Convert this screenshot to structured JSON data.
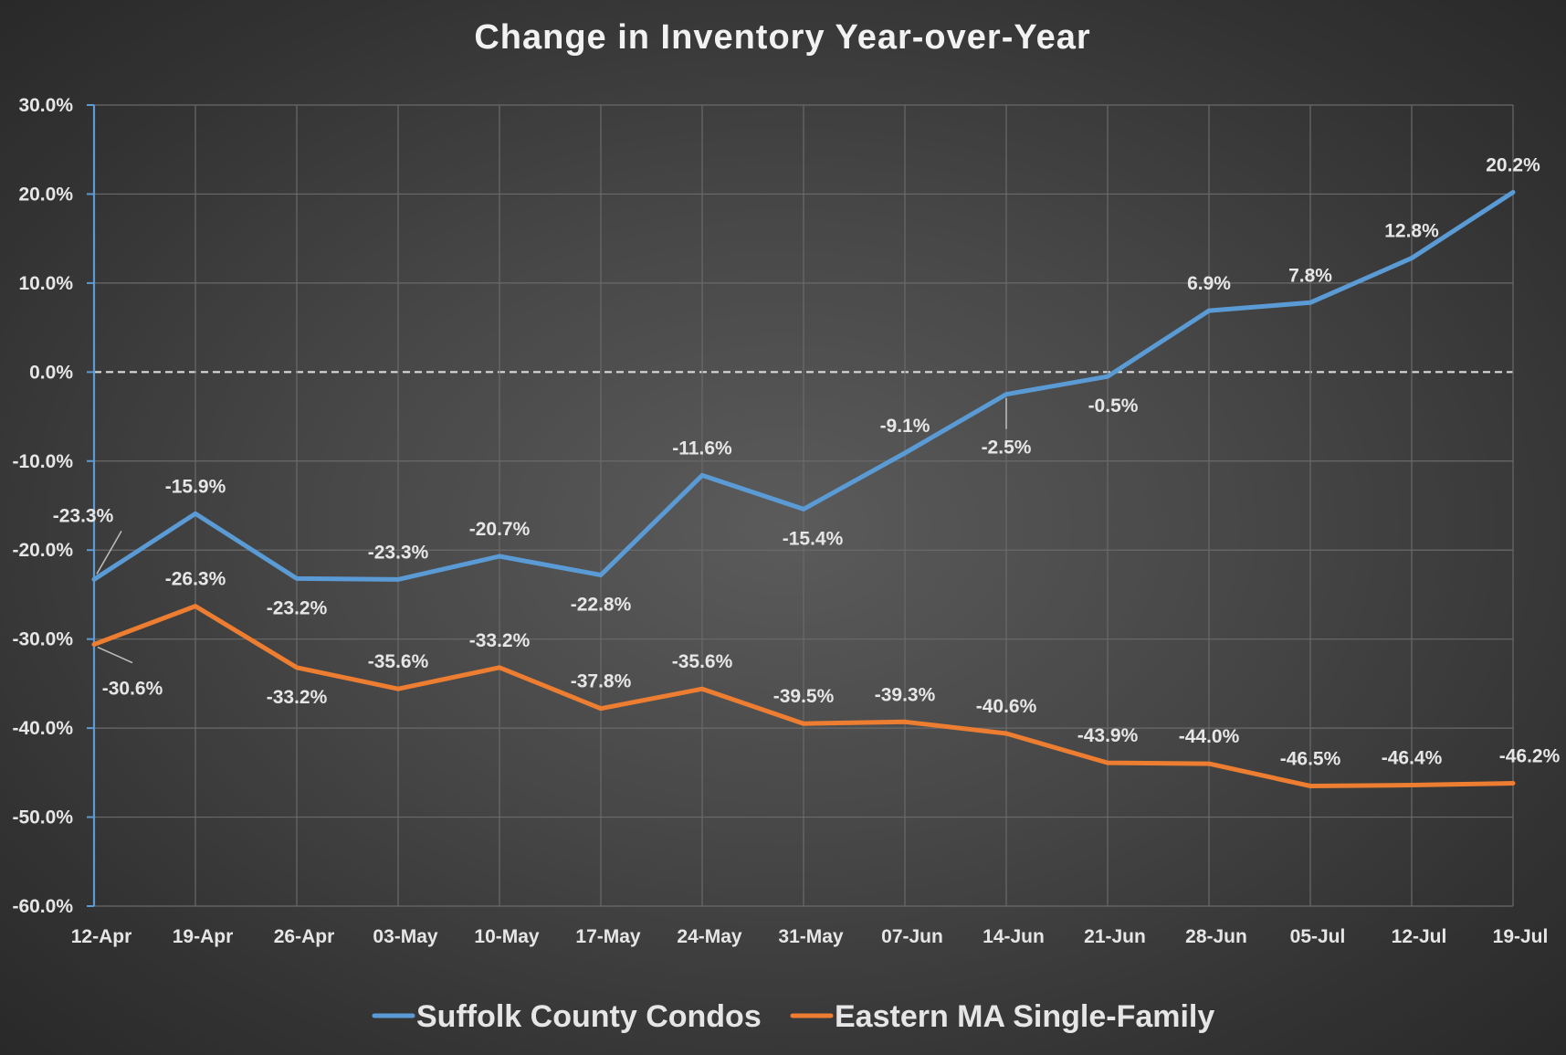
{
  "chart_data": {
    "type": "line",
    "title": "Change in Inventory Year-over-Year",
    "xlabel": "",
    "ylabel": "",
    "ylim": [
      -60,
      30
    ],
    "ytick_step": 10,
    "y_tick_labels": [
      "30.0%",
      "20.0%",
      "10.0%",
      "0.0%",
      "-10.0%",
      "-20.0%",
      "-30.0%",
      "-40.0%",
      "-50.0%",
      "-60.0%"
    ],
    "categories": [
      "12-Apr",
      "19-Apr",
      "26-Apr",
      "03-May",
      "10-May",
      "17-May",
      "24-May",
      "31-May",
      "07-Jun",
      "14-Jun",
      "21-Jun",
      "28-Jun",
      "05-Jul",
      "12-Jul",
      "19-Jul"
    ],
    "grid": true,
    "zero_line": "dashed",
    "legend_position": "bottom",
    "series": [
      {
        "name": "Suffolk County Condos",
        "color": "#5b9bd5",
        "values": [
          -23.3,
          -15.9,
          -23.2,
          -23.3,
          -20.7,
          -22.8,
          -11.6,
          -15.4,
          -9.1,
          -2.5,
          -0.5,
          6.9,
          7.8,
          12.8,
          20.2
        ],
        "labels": [
          "-23.3%",
          "-15.9%",
          "-23.2%",
          "-23.3%",
          "-20.7%",
          "-22.8%",
          "-11.6%",
          "-15.4%",
          "-9.1%",
          "-2.5%",
          "-0.5%",
          "6.9%",
          "7.8%",
          "12.8%",
          "20.2%"
        ]
      },
      {
        "name": "Eastern MA Single-Family",
        "color": "#ed7d31",
        "values": [
          -30.6,
          -26.3,
          -33.2,
          -35.6,
          -33.2,
          -37.8,
          -35.6,
          -39.5,
          -39.3,
          -40.6,
          -43.9,
          -44.0,
          -46.5,
          -46.4,
          -46.2
        ],
        "labels": [
          "-30.6%",
          "-26.3%",
          "-33.2%",
          "-35.6%",
          "-33.2%",
          "-37.8%",
          "-35.6%",
          "-39.5%",
          "-39.3%",
          "-40.6%",
          "-43.9%",
          "-44.0%",
          "-46.5%",
          "-46.4%",
          "-46.2%"
        ]
      }
    ]
  }
}
